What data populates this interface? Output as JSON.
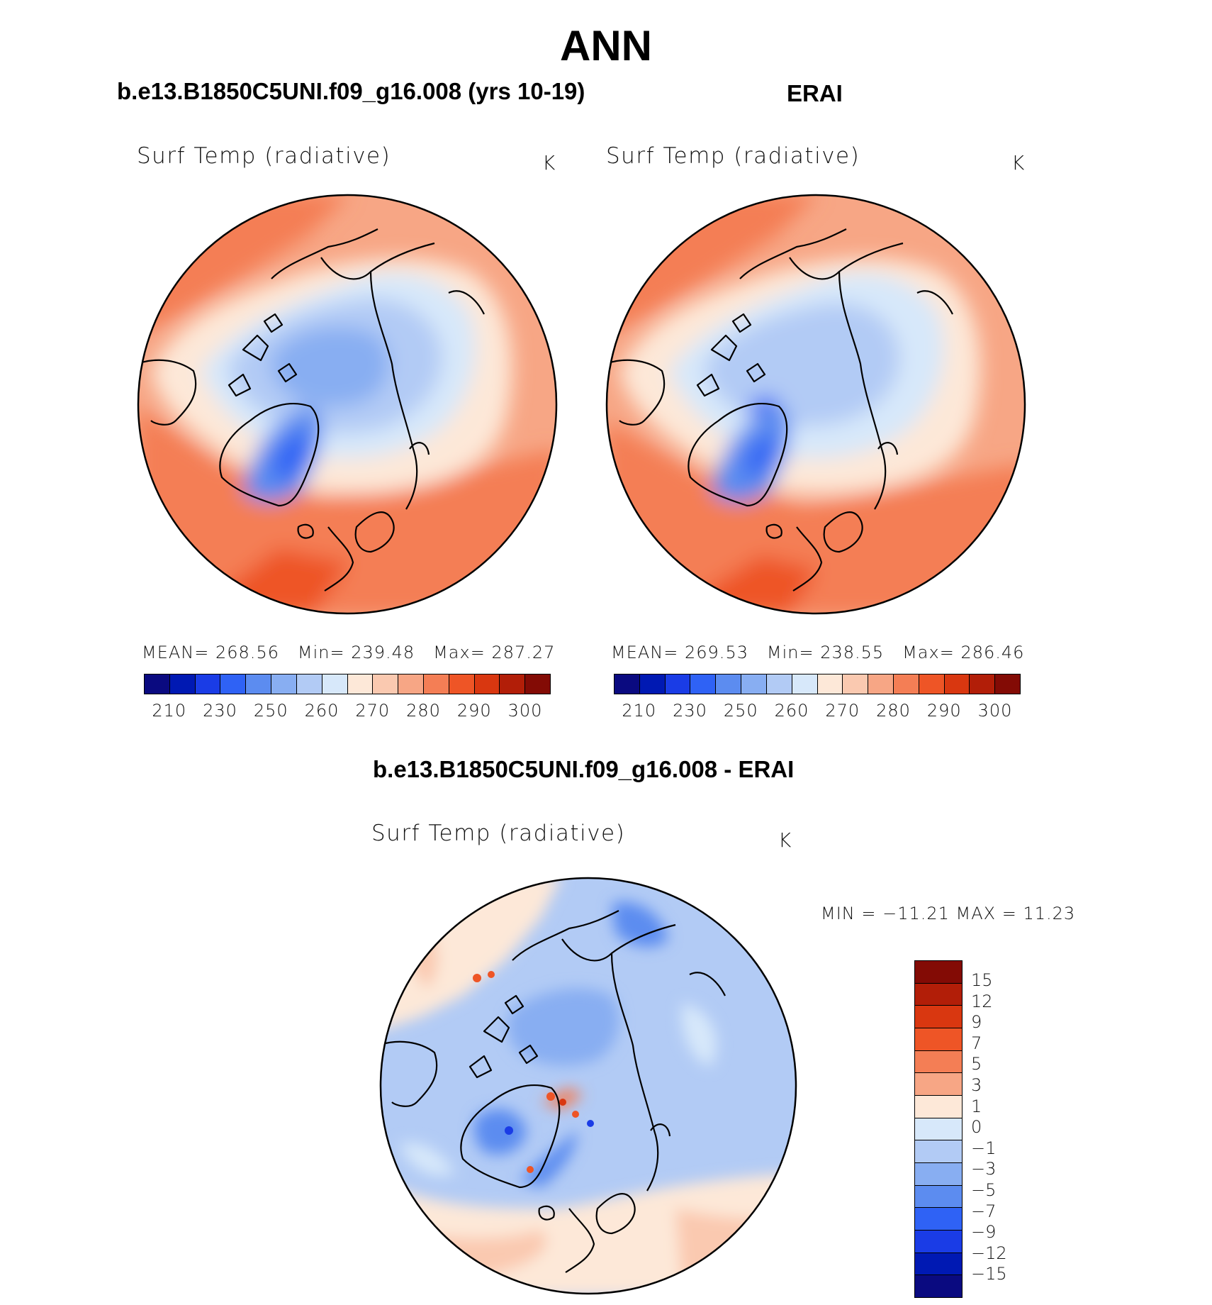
{
  "figure": {
    "title": "ANN"
  },
  "colors": {
    "abs_scale": [
      "#0a0a80",
      "#0019b3",
      "#1a3ce6",
      "#2f62f5",
      "#5c8cf0",
      "#88aef2",
      "#b2cbf5",
      "#d7e8fa",
      "#fde8d8",
      "#fac9b0",
      "#f7a685",
      "#f47e55",
      "#ee5526",
      "#d93710",
      "#b21e08",
      "#830b05"
    ],
    "diff_scale": [
      "#830b05",
      "#b21e08",
      "#d93710",
      "#ee5526",
      "#f47e55",
      "#f7a685",
      "#fde8d8",
      "#d7e8fa",
      "#b2cbf5",
      "#88aef2",
      "#5c8cf0",
      "#2f62f5",
      "#1a3ce6",
      "#0019b3",
      "#0a0a80"
    ]
  },
  "chart_data": [
    {
      "type": "heatmap",
      "projection": "polar stereographic (North Pole)",
      "case_title": "b.e13.B1850C5UNI.f09_g16.008 (yrs 10-19)",
      "variable": "Surf Temp (radiative)",
      "units": "K",
      "stats": {
        "mean_label": "MEAN=",
        "mean": "268.56",
        "min_label": "Min=",
        "min": "239.48",
        "max_label": "Max=",
        "max": "287.27"
      },
      "colorbar_ticks": [
        "210",
        "230",
        "250",
        "260",
        "270",
        "280",
        "290",
        "300"
      ]
    },
    {
      "type": "heatmap",
      "projection": "polar stereographic (North Pole)",
      "case_title": "ERAI",
      "variable": "Surf Temp (radiative)",
      "units": "K",
      "stats": {
        "mean_label": "MEAN=",
        "mean": "269.53",
        "min_label": "Min=",
        "min": "238.55",
        "max_label": "Max=",
        "max": "286.46"
      },
      "colorbar_ticks": [
        "210",
        "230",
        "250",
        "260",
        "270",
        "280",
        "290",
        "300"
      ]
    },
    {
      "type": "heatmap",
      "projection": "polar stereographic (North Pole)",
      "case_title": "b.e13.B1850C5UNI.f09_g16.008 - ERAI",
      "variable": "Surf Temp (radiative)",
      "units": "K",
      "stats": {
        "minmax_text": "MIN = −11.21 MAX =   11.23"
      },
      "colorbar_levels": [
        "15",
        "12",
        "9",
        "7",
        "5",
        "3",
        "1",
        "0",
        "−1",
        "−3",
        "−5",
        "−7",
        "−9",
        "−12",
        "−15"
      ]
    }
  ]
}
